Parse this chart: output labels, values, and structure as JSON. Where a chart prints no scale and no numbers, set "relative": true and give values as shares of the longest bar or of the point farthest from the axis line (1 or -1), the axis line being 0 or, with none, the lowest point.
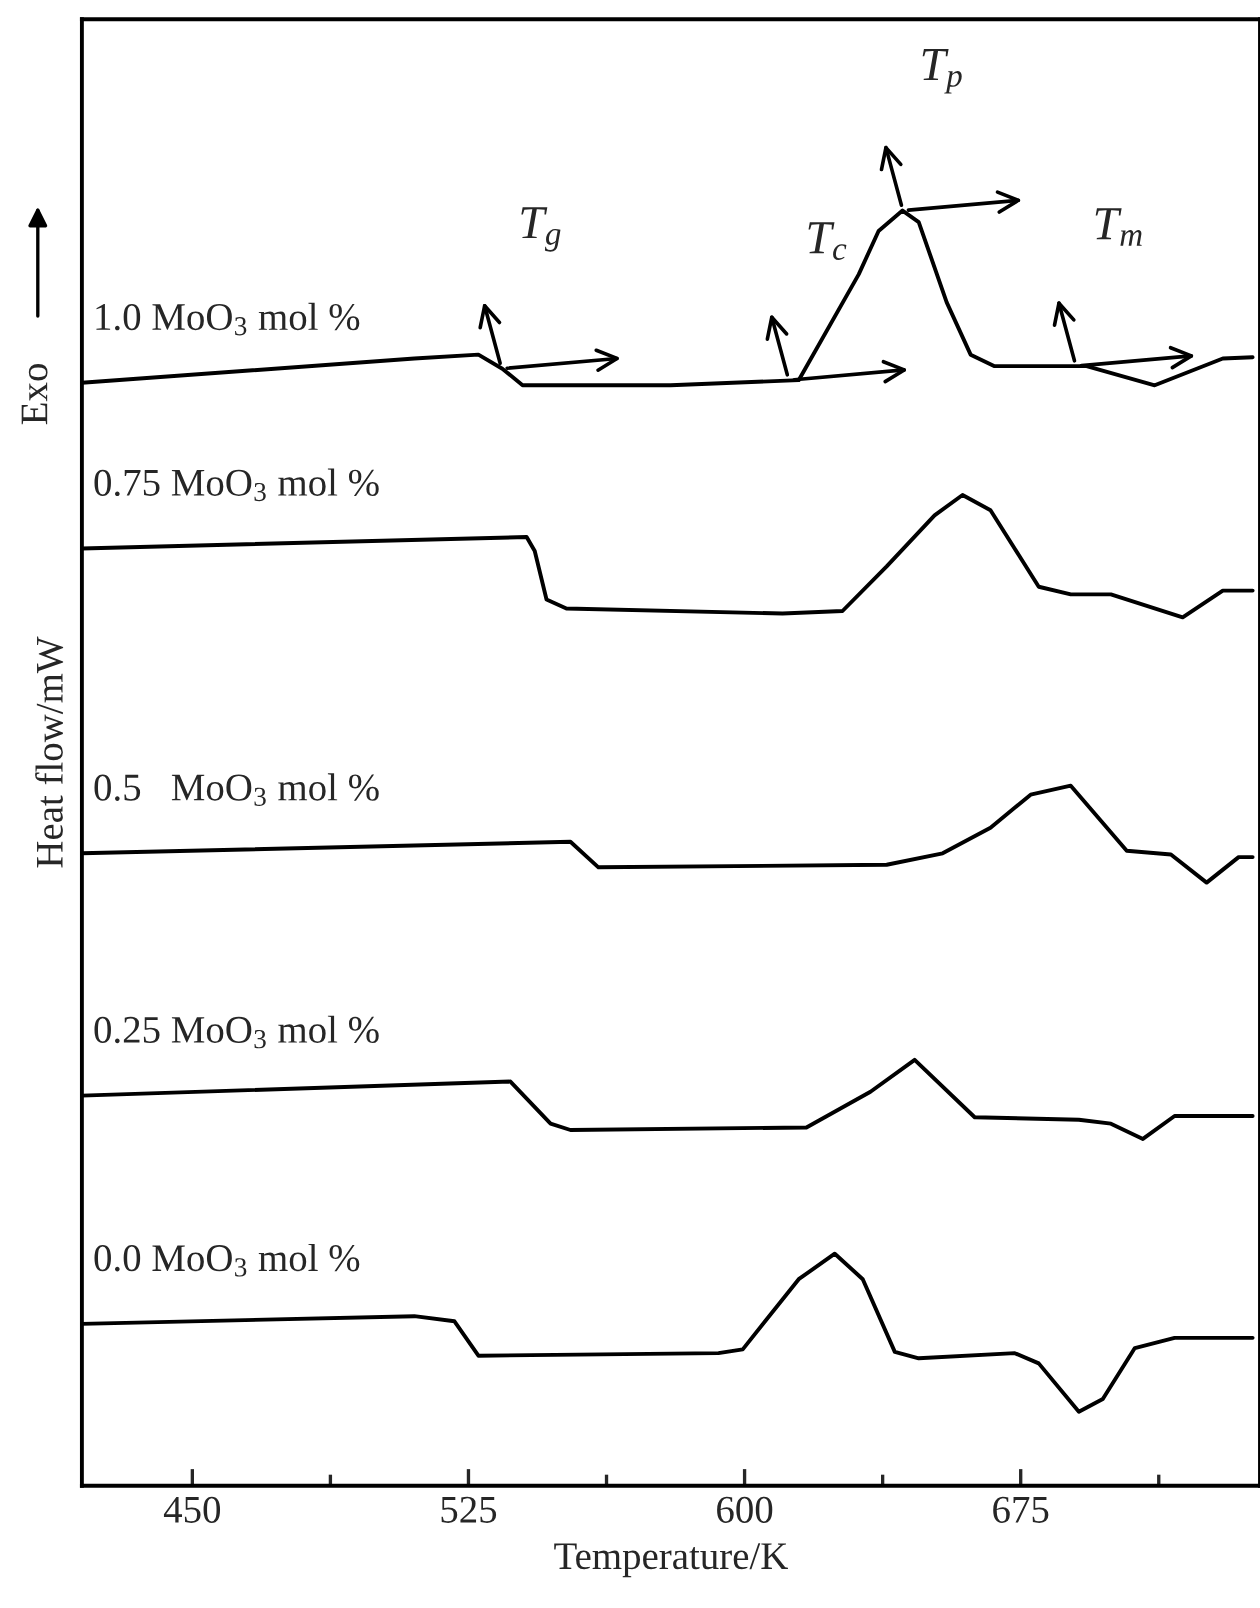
{
  "chart_data": {
    "type": "line",
    "relative": true,
    "xlabel": "Temperature/K",
    "ylabel": "Heat flow/mW",
    "xlim": [
      420,
      740
    ],
    "xticks": [
      450,
      {
        "value": 487.5,
        "label": null
      },
      525,
      {
        "value": 562.5,
        "label": null
      },
      600,
      {
        "value": 637.5,
        "label": null
      },
      675,
      {
        "value": 712.5,
        "label": null
      }
    ],
    "grid": false,
    "legend": false,
    "marker": "none",
    "line_style": "solid",
    "tick_labels": "x",
    "series": [
      {
        "name": "1.0 MoO$_{3}$ mol %",
        "color": "#000000",
        "x": [
          420,
          510.3,
          527.7,
          534.2,
          539.7,
          579.9,
          614.7,
          631,
          636.4,
          642.9,
          647.3,
          654.9,
          661.4,
          667.9,
          692.9,
          711.4,
          729.9,
          738
        ],
        "values": [
          0.865,
          0.884,
          0.887,
          0.876,
          0.863,
          0.863,
          0.867,
          0.95,
          0.984,
          1.0,
          0.991,
          0.928,
          0.887,
          0.878,
          0.878,
          0.863,
          0.884,
          0.885
        ]
      },
      {
        "name": "0.75 MoO$_{3}$ mol %",
        "color": "#000000",
        "x": [
          420,
          540.8,
          543,
          546.2,
          551.6,
          610.3,
          626.6,
          638.6,
          651.6,
          659.2,
          666.8,
          679.9,
          688.6,
          699.5,
          719,
          729.9,
          738
        ],
        "values": [
          0.735,
          0.744,
          0.733,
          0.695,
          0.688,
          0.684,
          0.686,
          0.721,
          0.761,
          0.777,
          0.765,
          0.705,
          0.699,
          0.699,
          0.681,
          0.702,
          0.702
        ]
      },
      {
        "name": "0.5   MoO$_{3}$ mol %",
        "color": "#000000",
        "x": [
          420,
          552.7,
          560.3,
          638.6,
          653.8,
          666.8,
          677.7,
          688.6,
          703.8,
          715.8,
          725.5,
          734.2,
          738
        ],
        "values": [
          0.496,
          0.505,
          0.485,
          0.487,
          0.496,
          0.516,
          0.542,
          0.549,
          0.498,
          0.495,
          0.473,
          0.493,
          0.493
        ]
      },
      {
        "name": "0.25 MoO$_{3}$ mol %",
        "color": "#000000",
        "x": [
          420,
          536.4,
          547.3,
          552.7,
          616.8,
          634.2,
          646.2,
          662.5,
          690.8,
          699.5,
          708.2,
          716.8,
          738
        ],
        "values": [
          0.306,
          0.317,
          0.284,
          0.279,
          0.281,
          0.309,
          0.334,
          0.289,
          0.287,
          0.284,
          0.272,
          0.29,
          0.29
        ]
      },
      {
        "name": "0.0 MoO$_{3}$ mol %",
        "color": "#000000",
        "x": [
          420,
          510.3,
          521.2,
          527.7,
          592.9,
          599.5,
          614.7,
          624.5,
          632.1,
          640.8,
          647.3,
          673.4,
          679.9,
          690.8,
          697.3,
          706,
          716.8,
          738
        ],
        "values": [
          0.127,
          0.133,
          0.129,
          0.102,
          0.104,
          0.107,
          0.162,
          0.182,
          0.162,
          0.105,
          0.1,
          0.104,
          0.096,
          0.058,
          0.068,
          0.108,
          0.116,
          0.116
        ]
      }
    ],
    "annotations": [
      "Exo",
      {
        "text": "T$_{g}$",
        "x": 534,
        "y": 0.876
      },
      {
        "text": "T$_{c}$",
        "x": 612,
        "y": 0.867
      },
      {
        "text": "T$_{p}$",
        "x": 643,
        "y": 1.0
      },
      {
        "text": "T$_{m}$",
        "x": 690,
        "y": 0.878
      }
    ]
  }
}
